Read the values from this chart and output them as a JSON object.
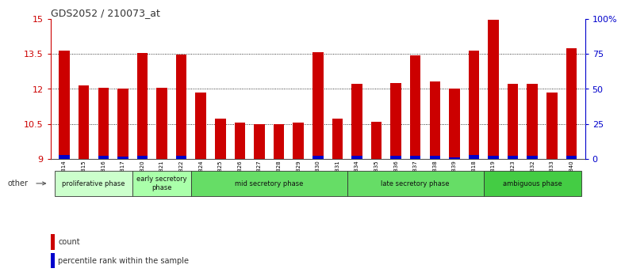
{
  "title": "GDS2052 / 210073_at",
  "samples": [
    "GSM109814",
    "GSM109815",
    "GSM109816",
    "GSM109817",
    "GSM109820",
    "GSM109821",
    "GSM109822",
    "GSM109824",
    "GSM109825",
    "GSM109826",
    "GSM109827",
    "GSM109828",
    "GSM109829",
    "GSM109830",
    "GSM109831",
    "GSM109834",
    "GSM109835",
    "GSM109836",
    "GSM109837",
    "GSM109838",
    "GSM109839",
    "GSM109818",
    "GSM109819",
    "GSM109823",
    "GSM109832",
    "GSM109833",
    "GSM109840"
  ],
  "count_values": [
    13.65,
    12.15,
    12.05,
    12.0,
    13.52,
    12.05,
    13.47,
    11.85,
    10.72,
    10.55,
    10.5,
    10.47,
    10.55,
    13.58,
    10.72,
    12.2,
    10.6,
    12.25,
    13.42,
    12.3,
    12.0,
    13.65,
    14.95,
    12.2,
    12.2,
    11.85,
    13.75
  ],
  "percentile_values": [
    0.15,
    0.0,
    0.12,
    0.08,
    0.12,
    0.0,
    0.12,
    0.0,
    0.0,
    0.0,
    0.0,
    0.0,
    0.0,
    0.12,
    0.0,
    0.12,
    0.0,
    0.12,
    0.12,
    0.12,
    0.05,
    0.15,
    0.12,
    0.12,
    0.12,
    0.0,
    0.12
  ],
  "y_min": 9.0,
  "y_max": 15.0,
  "y_ticks": [
    9.0,
    10.5,
    12.0,
    13.5,
    15.0
  ],
  "y_tick_labels": [
    "9",
    "10.5",
    "12",
    "13.5",
    "15"
  ],
  "right_y_ticks": [
    9.0,
    10.5,
    12.0,
    13.5,
    15.0
  ],
  "right_y_labels": [
    "0",
    "25",
    "50",
    "75",
    "100%"
  ],
  "phases": [
    {
      "label": "proliferative phase",
      "start": 0,
      "end": 4,
      "color": "#ccffcc"
    },
    {
      "label": "early secretory\nphase",
      "start": 4,
      "end": 7,
      "color": "#aaffaa"
    },
    {
      "label": "mid secretory phase",
      "start": 7,
      "end": 15,
      "color": "#66dd66"
    },
    {
      "label": "late secretory phase",
      "start": 15,
      "end": 22,
      "color": "#66dd66"
    },
    {
      "label": "ambiguous phase",
      "start": 22,
      "end": 27,
      "color": "#44cc44"
    }
  ],
  "bar_color": "#cc0000",
  "percentile_color": "#0000cc",
  "title_color": "#333333",
  "axis_color": "#cc0000",
  "right_axis_color": "#0000cc",
  "bar_width": 0.55
}
